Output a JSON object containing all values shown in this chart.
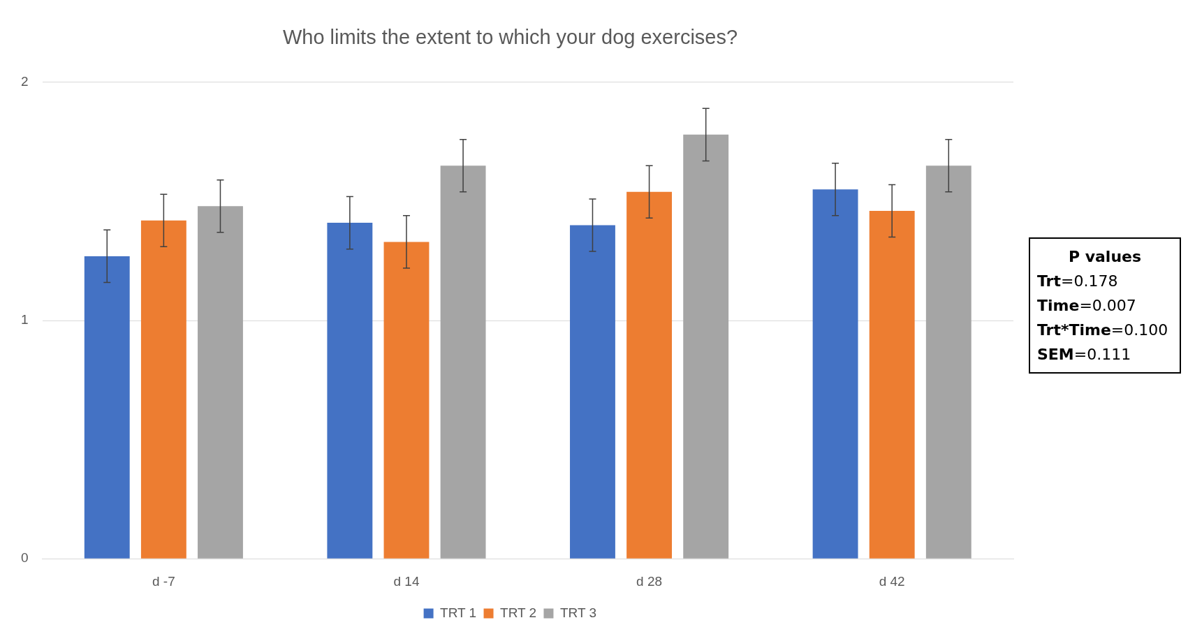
{
  "chart_data": {
    "type": "bar",
    "title": "Who limits the extent to which your dog exercises?",
    "categories": [
      "d -7",
      "d 14",
      "d 28",
      "d 42"
    ],
    "series": [
      {
        "name": "TRT 1",
        "color": "#4472c4",
        "values": [
          1.27,
          1.41,
          1.4,
          1.55
        ],
        "errors": [
          0.11,
          0.11,
          0.11,
          0.11
        ]
      },
      {
        "name": "TRT 2",
        "color": "#ed7d31",
        "values": [
          1.42,
          1.33,
          1.54,
          1.46
        ],
        "errors": [
          0.11,
          0.11,
          0.11,
          0.11
        ]
      },
      {
        "name": "TRT 3",
        "color": "#a5a5a5",
        "values": [
          1.48,
          1.65,
          1.78,
          1.65
        ],
        "errors": [
          0.11,
          0.11,
          0.11,
          0.11
        ]
      }
    ],
    "ylim": [
      0,
      2
    ],
    "yticks": [
      0,
      1,
      2
    ],
    "grid": "y",
    "legend": "bottom",
    "annotations": [
      "P values",
      "Trt=0.178",
      "Time=0.007",
      "Trt*Time=0.100",
      "SEM=0.111"
    ]
  }
}
